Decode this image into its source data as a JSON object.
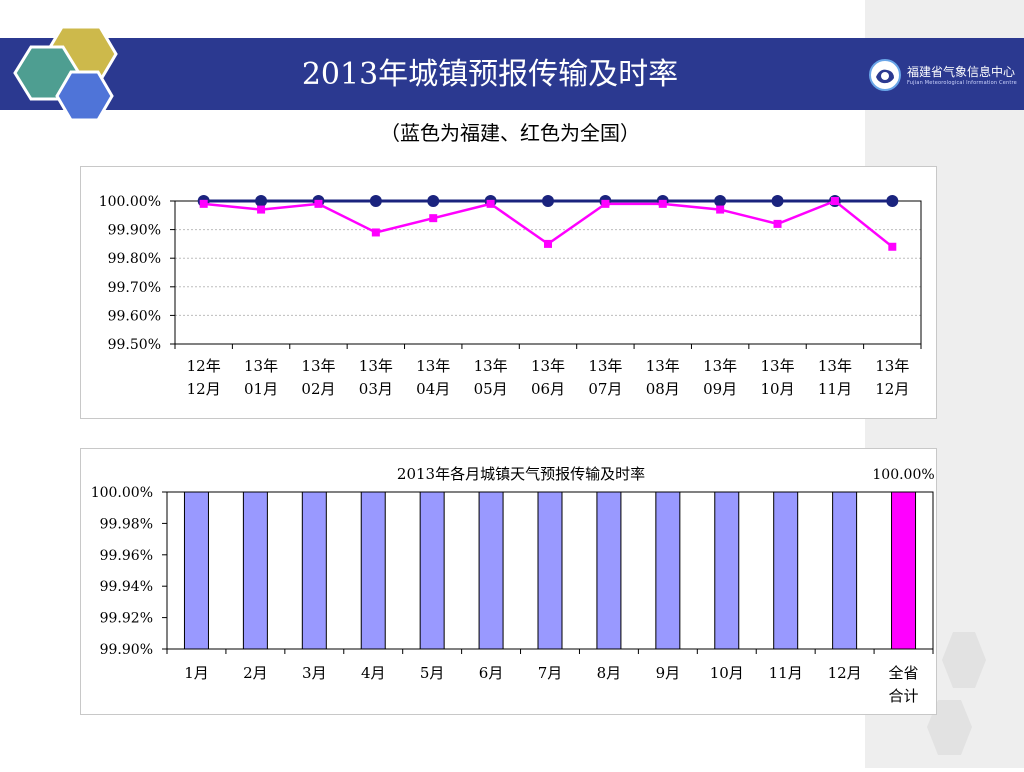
{
  "title": "2013年城镇预报传输及时率",
  "subtitle": "（蓝色为福建、红色为全国）",
  "logo": {
    "name": "福建省气象信息中心",
    "english": "Fujian Meteorological Information Centre"
  },
  "icons": [
    "hexagon-cluster-icon",
    "logo-emblem-icon"
  ],
  "colors": {
    "title_bar": "#2b3990",
    "fujian_line": "#1a237e",
    "national_line": "#ff00ff",
    "bars": "#9999ff",
    "total_bar": "#ff00ff"
  },
  "chart_data": [
    {
      "type": "line",
      "title": "",
      "categories": [
        [
          "12年",
          "12月"
        ],
        [
          "13年",
          "01月"
        ],
        [
          "13年",
          "02月"
        ],
        [
          "13年",
          "03月"
        ],
        [
          "13年",
          "04月"
        ],
        [
          "13年",
          "05月"
        ],
        [
          "13年",
          "06月"
        ],
        [
          "13年",
          "07月"
        ],
        [
          "13年",
          "08月"
        ],
        [
          "13年",
          "09月"
        ],
        [
          "13年",
          "10月"
        ],
        [
          "13年",
          "11月"
        ],
        [
          "13年",
          "12月"
        ]
      ],
      "yticks": [
        "100.00%",
        "99.90%",
        "99.80%",
        "99.70%",
        "99.60%",
        "99.50%"
      ],
      "ylim": [
        99.5,
        100.0
      ],
      "series": [
        {
          "color": "#1a237e",
          "marker": "circle",
          "values": [
            100.0,
            100.0,
            100.0,
            100.0,
            100.0,
            100.0,
            100.0,
            100.0,
            100.0,
            100.0,
            100.0,
            100.0,
            100.0
          ]
        },
        {
          "color": "#ff00ff",
          "marker": "square",
          "values": [
            99.99,
            99.97,
            99.99,
            99.89,
            99.94,
            99.99,
            99.85,
            99.99,
            99.99,
            99.97,
            99.92,
            100.0,
            99.84
          ]
        }
      ],
      "grid": true
    },
    {
      "type": "bar",
      "title": "2013年各月城镇天气预报传输及时率",
      "categories": [
        [
          "1月"
        ],
        [
          "2月"
        ],
        [
          "3月"
        ],
        [
          "4月"
        ],
        [
          "5月"
        ],
        [
          "6月"
        ],
        [
          "7月"
        ],
        [
          "8月"
        ],
        [
          "9月"
        ],
        [
          "10月"
        ],
        [
          "11月"
        ],
        [
          "12月"
        ],
        [
          "全省",
          "合计"
        ]
      ],
      "values": [
        100.0,
        100.0,
        100.0,
        100.0,
        100.0,
        100.0,
        100.0,
        100.0,
        100.0,
        100.0,
        100.0,
        100.0,
        100.0
      ],
      "data_labels": [
        "",
        "",
        "",
        "",
        "",
        "",
        "",
        "",
        "",
        "",
        "",
        "",
        "100.00%"
      ],
      "yticks": [
        "100.00%",
        "99.98%",
        "99.96%",
        "99.94%",
        "99.92%",
        "99.90%"
      ],
      "ylim": [
        99.9,
        100.0
      ],
      "grid": false
    }
  ]
}
